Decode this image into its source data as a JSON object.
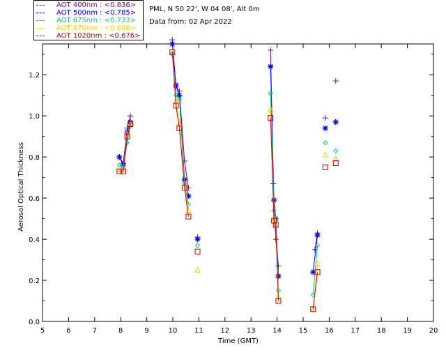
{
  "header": {
    "station": "PML, N 50 22', W 04 08', Alt 0m",
    "date_line": "Data from: 02 Apr 2022"
  },
  "chart_data": {
    "type": "line",
    "title": "",
    "xlabel": "Time (GMT)",
    "ylabel": "Aerosol Optical Thickness",
    "xlim": [
      5,
      20
    ],
    "ylim": [
      0,
      1.35
    ],
    "x_ticks": [
      "5",
      "6",
      "7",
      "8",
      "9",
      "10",
      "11",
      "12",
      "13",
      "14",
      "15",
      "16",
      "17",
      "18",
      "19",
      "20"
    ],
    "y_ticks": [
      "0.0",
      "0.2",
      "0.4",
      "0.6",
      "0.8",
      "1.0",
      "1.2"
    ],
    "y_tick_values": [
      0,
      0.2,
      0.4,
      0.6,
      0.8,
      1.0,
      1.2
    ],
    "grid": false,
    "legend_position": "top-left",
    "series": [
      {
        "name": "AOT  400nm : <0.836>",
        "color": "#880088",
        "marker": "plus",
        "segments": [
          [
            [
              7.95,
              0.8
            ],
            [
              8.1,
              0.77
            ],
            [
              8.25,
              0.94
            ],
            [
              8.37,
              1.0
            ]
          ],
          [
            [
              9.98,
              1.37
            ],
            [
              10.12,
              1.14
            ],
            [
              10.25,
              1.12
            ],
            [
              10.45,
              0.78
            ],
            [
              10.6,
              0.65
            ]
          ],
          [
            [
              13.75,
              1.32
            ],
            [
              13.85,
              0.67
            ],
            [
              13.95,
              0.4
            ],
            [
              14.05,
              0.27
            ]
          ],
          [
            [
              15.45,
              0.35
            ],
            [
              15.55,
              0.43
            ]
          ]
        ],
        "points": [
          [
            10.95,
            0.41
          ],
          [
            15.85,
            0.99
          ],
          [
            16.25,
            1.17
          ]
        ]
      },
      {
        "name": "AOT  500nm : <0.785>",
        "color": "#0000ff",
        "marker": "asterisk",
        "segments": [
          [
            [
              7.95,
              0.8
            ],
            [
              8.1,
              0.76
            ],
            [
              8.25,
              0.92
            ],
            [
              8.37,
              0.97
            ]
          ],
          [
            [
              9.98,
              1.35
            ],
            [
              10.12,
              1.15
            ],
            [
              10.25,
              1.1
            ],
            [
              10.45,
              0.69
            ],
            [
              10.6,
              0.61
            ]
          ],
          [
            [
              13.75,
              1.24
            ],
            [
              13.88,
              0.59
            ],
            [
              13.95,
              0.5
            ],
            [
              14.05,
              0.22
            ]
          ],
          [
            [
              15.38,
              0.24
            ],
            [
              15.55,
              0.42
            ]
          ]
        ],
        "points": [
          [
            10.95,
            0.4
          ],
          [
            15.85,
            0.94
          ],
          [
            16.25,
            0.97
          ]
        ]
      },
      {
        "name": "AOT  675nm : <0.733>",
        "color": "#00cc88",
        "marker": "diamond",
        "segments": [
          [
            [
              7.95,
              0.76
            ],
            [
              8.1,
              0.75
            ],
            [
              8.25,
              0.87
            ],
            [
              8.37,
              0.95
            ]
          ],
          [
            [
              9.98,
              1.3
            ],
            [
              10.12,
              1.1
            ],
            [
              10.25,
              1.08
            ],
            [
              10.45,
              0.67
            ],
            [
              10.6,
              0.57
            ]
          ],
          [
            [
              13.75,
              1.11
            ],
            [
              13.88,
              0.54
            ],
            [
              13.95,
              0.5
            ],
            [
              14.05,
              0.15
            ]
          ],
          [
            [
              15.38,
              0.13
            ],
            [
              15.55,
              0.37
            ]
          ]
        ],
        "points": [
          [
            10.95,
            0.37
          ],
          [
            15.85,
            0.87
          ],
          [
            16.25,
            0.83
          ]
        ]
      },
      {
        "name": "AOT  870nm : <0.698>",
        "color": "#ffcc00",
        "marker": "triangle",
        "segments": [
          [
            [
              7.95,
              0.74
            ],
            [
              8.1,
              0.74
            ],
            [
              8.25,
              0.91
            ],
            [
              8.37,
              0.96
            ]
          ],
          [
            [
              9.98,
              1.31
            ],
            [
              10.12,
              1.07
            ],
            [
              10.25,
              0.96
            ],
            [
              10.45,
              0.66
            ],
            [
              10.6,
              0.54
            ]
          ],
          [
            [
              13.75,
              1.03
            ],
            [
              13.88,
              0.5
            ],
            [
              13.95,
              0.47
            ],
            [
              14.05,
              0.12
            ]
          ],
          [
            [
              15.38,
              0.06
            ],
            [
              15.55,
              0.28
            ]
          ]
        ],
        "points": [
          [
            10.95,
            0.25
          ],
          [
            15.85,
            0.81
          ],
          [
            16.25,
            0.79
          ]
        ]
      },
      {
        "name": "AOT 1020nm : <0.676>",
        "color": "#cc0000",
        "marker": "square",
        "segments": [
          [
            [
              7.95,
              0.73
            ],
            [
              8.1,
              0.73
            ],
            [
              8.25,
              0.9
            ],
            [
              8.37,
              0.96
            ]
          ],
          [
            [
              9.98,
              1.31
            ],
            [
              10.12,
              1.05
            ],
            [
              10.25,
              0.94
            ],
            [
              10.45,
              0.65
            ],
            [
              10.6,
              0.51
            ]
          ],
          [
            [
              13.75,
              0.99
            ],
            [
              13.88,
              0.49
            ],
            [
              13.95,
              0.47
            ],
            [
              14.05,
              0.1
            ]
          ],
          [
            [
              15.38,
              0.06
            ],
            [
              15.55,
              0.24
            ]
          ]
        ],
        "points": [
          [
            10.95,
            0.34
          ],
          [
            15.85,
            0.75
          ],
          [
            16.25,
            0.77
          ]
        ]
      }
    ]
  }
}
